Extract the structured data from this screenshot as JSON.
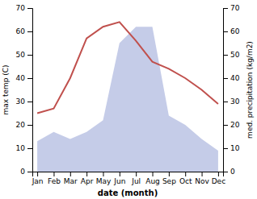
{
  "chart_data": {
    "type": "line",
    "xlabel": "date (month)",
    "ylabel": "max temp (C)",
    "y2label": "med. precipitation (kg/m2)",
    "categories": [
      "Jan",
      "Feb",
      "Mar",
      "Apr",
      "May",
      "Jun",
      "Jul",
      "Aug",
      "Sep",
      "Oct",
      "Nov",
      "Dec"
    ],
    "series": [
      {
        "type": "area",
        "axis": "y2",
        "color": "#c5cce8",
        "values": [
          13,
          17,
          14,
          17,
          22,
          55,
          62,
          62,
          24,
          20,
          14,
          9
        ]
      },
      {
        "type": "line",
        "color": "#c0504d",
        "values": [
          25,
          27,
          40,
          57,
          62,
          64,
          56,
          47,
          44,
          40,
          35,
          29
        ]
      }
    ],
    "ylim": [
      0,
      70
    ],
    "yticks": [
      0,
      10,
      20,
      30,
      40,
      50,
      60,
      70
    ],
    "y2lim": [
      0,
      70
    ],
    "y2ticks": [
      0,
      10,
      20,
      30,
      40,
      50,
      60,
      70
    ],
    "grid": false
  }
}
